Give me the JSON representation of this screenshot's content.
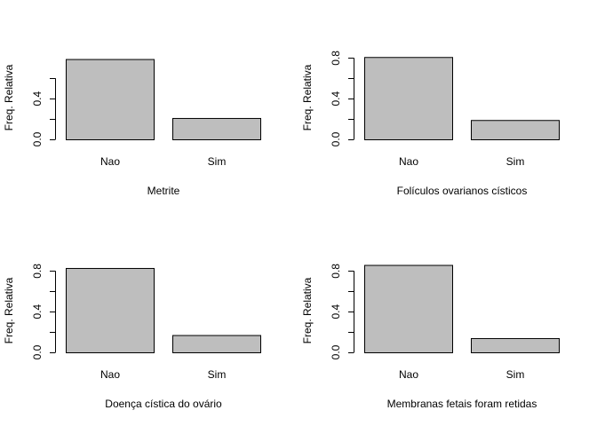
{
  "chart_data": [
    {
      "type": "bar",
      "categories": [
        "Nao",
        "Sim"
      ],
      "values": [
        0.79,
        0.21
      ],
      "title": "",
      "xlabel": "Metrite",
      "ylabel": "Freq. Relativa",
      "ylim": [
        0,
        0.8
      ],
      "yticks": [
        "0.0",
        "0.4"
      ],
      "ytick_values": [
        0,
        0.4
      ],
      "yminor": [
        0.2,
        0.6
      ],
      "bar_color": "#bebebe"
    },
    {
      "type": "bar",
      "categories": [
        "Nao",
        "Sim"
      ],
      "values": [
        0.81,
        0.19
      ],
      "title": "",
      "xlabel": "Folículos ovarianos císticos",
      "ylabel": "Freq. Relativa",
      "ylim": [
        0,
        0.8
      ],
      "yticks": [
        "0.0",
        "0.4",
        "0.8"
      ],
      "ytick_values": [
        0,
        0.4,
        0.8
      ],
      "yminor": [
        0.2,
        0.6
      ],
      "bar_color": "#bebebe"
    },
    {
      "type": "bar",
      "categories": [
        "Nao",
        "Sim"
      ],
      "values": [
        0.83,
        0.17
      ],
      "title": "",
      "xlabel": "Doença cística do ovário",
      "ylabel": "Freq. Relativa",
      "ylim": [
        0,
        0.8
      ],
      "yticks": [
        "0.0",
        "0.4",
        "0.8"
      ],
      "ytick_values": [
        0,
        0.4,
        0.8
      ],
      "yminor": [
        0.2,
        0.6
      ],
      "bar_color": "#bebebe"
    },
    {
      "type": "bar",
      "categories": [
        "Nao",
        "Sim"
      ],
      "values": [
        0.86,
        0.14
      ],
      "title": "",
      "xlabel": "Membranas fetais foram retidas",
      "ylabel": "Freq. Relativa",
      "ylim": [
        0,
        0.8
      ],
      "yticks": [
        "0.0",
        "0.4",
        "0.8"
      ],
      "ytick_values": [
        0,
        0.4,
        0.8
      ],
      "yminor": [
        0.2,
        0.6
      ],
      "bar_color": "#bebebe"
    }
  ]
}
